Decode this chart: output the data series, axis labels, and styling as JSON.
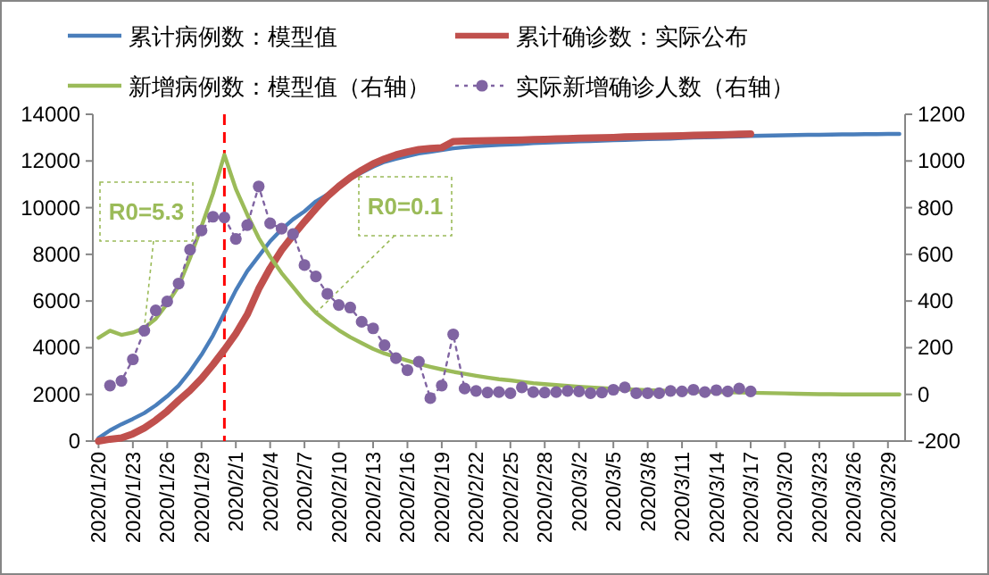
{
  "chart_data": {
    "type": "line",
    "legend": "top",
    "grid": false,
    "x": [
      "2020-01-20",
      "2020-01-21",
      "2020-01-22",
      "2020-01-23",
      "2020-01-24",
      "2020-01-25",
      "2020-01-26",
      "2020-01-27",
      "2020-01-28",
      "2020-01-29",
      "2020-01-30",
      "2020-01-31",
      "2020-02-01",
      "2020-02-02",
      "2020-02-03",
      "2020-02-04",
      "2020-02-05",
      "2020-02-06",
      "2020-02-07",
      "2020-02-08",
      "2020-02-09",
      "2020-02-10",
      "2020-02-11",
      "2020-02-12",
      "2020-02-13",
      "2020-02-14",
      "2020-02-15",
      "2020-02-16",
      "2020-02-17",
      "2020-02-18",
      "2020-02-19",
      "2020-02-20",
      "2020-02-21",
      "2020-02-22",
      "2020-02-23",
      "2020-02-24",
      "2020-02-25",
      "2020-02-26",
      "2020-02-27",
      "2020-02-28",
      "2020-02-29",
      "2020-03-01",
      "2020-03-02",
      "2020-03-03",
      "2020-03-04",
      "2020-03-05",
      "2020-03-06",
      "2020-03-07",
      "2020-03-08",
      "2020-03-09",
      "2020-03-10",
      "2020-03-11",
      "2020-03-12",
      "2020-03-13",
      "2020-03-14",
      "2020-03-15",
      "2020-03-16",
      "2020-03-17",
      "2020-03-18",
      "2020-03-19",
      "2020-03-20",
      "2020-03-21",
      "2020-03-22",
      "2020-03-23",
      "2020-03-24",
      "2020-03-25",
      "2020-03-26",
      "2020-03-27",
      "2020-03-28",
      "2020-03-29",
      "2020-03-30"
    ],
    "xlim": [
      "2020-01-19T12:00",
      "2020-03-30T12:00"
    ],
    "xticks": [
      {
        "value": "2020-01-20",
        "label": "2020/1/20"
      },
      {
        "value": "2020-01-23",
        "label": "2020/1/23"
      },
      {
        "value": "2020-01-26",
        "label": "2020/1/26"
      },
      {
        "value": "2020-01-29",
        "label": "2020/1/29"
      },
      {
        "value": "2020-02-01",
        "label": "2020/2/1"
      },
      {
        "value": "2020-02-04",
        "label": "2020/2/4"
      },
      {
        "value": "2020-02-07",
        "label": "2020/2/7"
      },
      {
        "value": "2020-02-10",
        "label": "2020/2/10"
      },
      {
        "value": "2020-02-13",
        "label": "2020/2/13"
      },
      {
        "value": "2020-02-16",
        "label": "2020/2/16"
      },
      {
        "value": "2020-02-19",
        "label": "2020/2/19"
      },
      {
        "value": "2020-02-22",
        "label": "2020/2/22"
      },
      {
        "value": "2020-02-25",
        "label": "2020/2/25"
      },
      {
        "value": "2020-02-28",
        "label": "2020/2/28"
      },
      {
        "value": "2020-03-02",
        "label": "2020/3/2"
      },
      {
        "value": "2020-03-05",
        "label": "2020/3/5"
      },
      {
        "value": "2020-03-08",
        "label": "2020/3/8"
      },
      {
        "value": "2020-03-11",
        "label": "2020/3/11"
      },
      {
        "value": "2020-03-14",
        "label": "2020/3/14"
      },
      {
        "value": "2020-03-17",
        "label": "2020/3/17"
      },
      {
        "value": "2020-03-20",
        "label": "2020/3/20"
      },
      {
        "value": "2020-03-23",
        "label": "2020/3/23"
      },
      {
        "value": "2020-03-26",
        "label": "2020/3/26"
      },
      {
        "value": "2020-03-29",
        "label": "2020/3/29"
      }
    ],
    "ylim": [
      0,
      14000
    ],
    "yticks": [
      0,
      2000,
      4000,
      6000,
      8000,
      10000,
      12000,
      14000
    ],
    "y2lim": [
      -200,
      1200
    ],
    "y2ticks": [
      -200,
      0,
      200,
      400,
      600,
      800,
      1000,
      1200
    ],
    "series": [
      {
        "name": "累计病例数：模型值",
        "color": "#4a7ebb",
        "marker": "none",
        "line_style": "solid",
        "values": [
          130,
          460,
          720,
          950,
          1200,
          1530,
          1920,
          2380,
          2990,
          3700,
          4520,
          5490,
          6460,
          7280,
          7920,
          8560,
          9070,
          9500,
          9840,
          10270,
          10560,
          10880,
          11240,
          11500,
          11750,
          11960,
          12090,
          12210,
          12320,
          12390,
          12470,
          12540,
          12590,
          12630,
          12660,
          12690,
          12710,
          12730,
          12760,
          12780,
          12800,
          12820,
          12840,
          12850,
          12870,
          12890,
          12900,
          12920,
          12940,
          12950,
          12960,
          12980,
          13000,
          13010,
          13020,
          13040,
          13050,
          13070,
          13080,
          13090,
          13100,
          13110,
          13120,
          13120,
          13130,
          13140,
          13140,
          13150,
          13150,
          13160,
          13160
        ]
      },
      {
        "name": "累计确诊数：实际公布",
        "color": "#c0504d",
        "marker": "none",
        "line_style": "solid",
        "values": [
          0,
          80,
          130,
          310,
          560,
          890,
          1280,
          1740,
          2170,
          2680,
          3270,
          3910,
          4600,
          5420,
          6520,
          7410,
          8180,
          8810,
          9400,
          9960,
          10480,
          10910,
          11290,
          11600,
          11880,
          12090,
          12260,
          12390,
          12490,
          12540,
          12570,
          12830,
          12850,
          12860,
          12870,
          12880,
          12890,
          12900,
          12920,
          12930,
          12950,
          12960,
          12980,
          12990,
          13000,
          13010,
          13030,
          13040,
          13050,
          13060,
          13070,
          13080,
          13100,
          13110,
          13120,
          13130,
          13150,
          13160,
          null,
          null,
          null,
          null,
          null,
          null,
          null,
          null,
          null,
          null,
          null,
          null,
          null
        ]
      },
      {
        "name": "新增病例数：模型值（右轴）",
        "color": "#9bbb59",
        "axis": "y2",
        "marker": "none",
        "line_style": "solid",
        "values": [
          242,
          273,
          255,
          265,
          285,
          324,
          388,
          464,
          584,
          720,
          860,
          1026,
          880,
          770,
          670,
          590,
          520,
          460,
          400,
          350,
          310,
          275,
          245,
          220,
          195,
          175,
          160,
          145,
          130,
          118,
          107,
          97,
          88,
          80,
          72,
          65,
          60,
          54,
          48,
          44,
          40,
          36,
          33,
          30,
          27,
          24,
          22,
          20,
          18,
          16,
          15,
          13,
          12,
          11,
          10,
          9,
          8,
          7,
          6,
          5,
          4,
          3,
          2,
          1,
          1,
          0,
          0,
          0,
          0,
          0,
          0
        ]
      },
      {
        "name": "实际新增确诊人数（右轴）",
        "color": "#8064a2",
        "axis": "y2",
        "marker": "circle",
        "line_style": "dotted",
        "values": [
          null,
          38,
          58,
          150,
          273,
          360,
          398,
          475,
          620,
          702,
          761,
          758,
          666,
          725,
          891,
          733,
          710,
          687,
          554,
          505,
          431,
          383,
          372,
          311,
          283,
          211,
          155,
          104,
          140,
          -16,
          38,
          257,
          25,
          15,
          8,
          10,
          5,
          30,
          10,
          8,
          10,
          15,
          13,
          5,
          8,
          20,
          30,
          5,
          5,
          5,
          15,
          13,
          20,
          10,
          18,
          13,
          25,
          13,
          null,
          null,
          null,
          null,
          null,
          null,
          null,
          null,
          null,
          null,
          null,
          null,
          null
        ]
      }
    ],
    "ref_lines": [
      {
        "axis": "x",
        "value": "2020-01-31",
        "color": "#ff0000",
        "line_style": "dashed"
      }
    ],
    "annotations": [
      {
        "text": "R0=5.3",
        "x": "2020-01-24",
        "y": 4850
      },
      {
        "text": "R0=0.1",
        "x": "2020-02-08",
        "y": 5500
      }
    ]
  }
}
